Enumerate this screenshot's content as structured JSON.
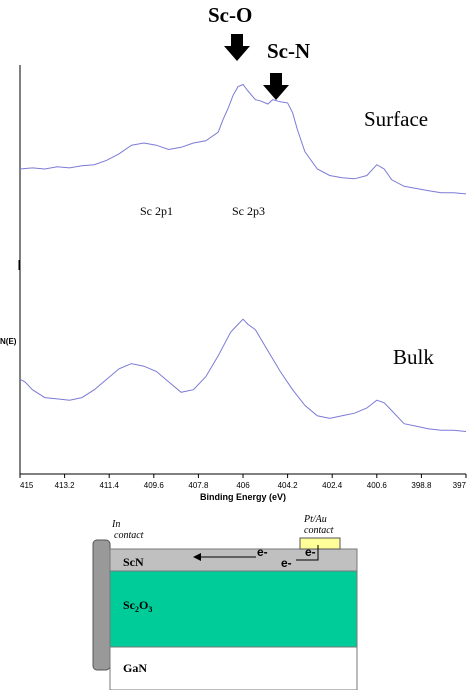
{
  "chart_data": {
    "type": "line",
    "xlabel": "Binding Energy (eV)",
    "ylabel": "N(E)",
    "x_reversed": true,
    "xlim": [
      415,
      397
    ],
    "xticks": [
      "415",
      "413.2",
      "411.4",
      "409.6",
      "407.8",
      "406",
      "404.2",
      "402.4",
      "400.6",
      "398.8",
      "397"
    ],
    "series": [
      {
        "name": "Surface",
        "x": [
          415,
          414.5,
          414,
          413.5,
          413,
          412.5,
          412,
          411.5,
          411,
          410.5,
          410,
          409.5,
          409,
          408.5,
          408,
          407.5,
          407,
          406.8,
          406.6,
          406.4,
          406.2,
          406,
          405.8,
          405.5,
          405.3,
          405,
          404.8,
          404.5,
          404.2,
          404,
          403.8,
          403.5,
          403,
          402.5,
          402,
          401.5,
          401,
          400.6,
          400.3,
          400,
          399.5,
          399,
          398.5,
          398,
          397.5,
          397
        ],
        "y": [
          4.2,
          4.25,
          4.2,
          4.3,
          4.25,
          4.35,
          4.4,
          4.6,
          4.9,
          5.3,
          5.4,
          5.3,
          5.1,
          5.2,
          5.4,
          5.5,
          5.9,
          6.5,
          7.0,
          7.6,
          8.0,
          8.1,
          7.8,
          7.4,
          7.35,
          7.2,
          7.4,
          7.3,
          7.25,
          6.8,
          6.0,
          5.0,
          4.2,
          3.9,
          3.8,
          3.75,
          3.9,
          4.4,
          4.2,
          3.7,
          3.4,
          3.3,
          3.2,
          3.1,
          3.1,
          3.05
        ],
        "label": "Surface"
      },
      {
        "name": "Bulk",
        "x": [
          415,
          414.8,
          414.5,
          414,
          413.5,
          413,
          412.5,
          412,
          411.5,
          411,
          410.5,
          410,
          409.5,
          409,
          408.5,
          408,
          407.5,
          407,
          406.5,
          406.2,
          406,
          405.8,
          405.5,
          405,
          404.5,
          404,
          403.5,
          403,
          402.5,
          402,
          401.5,
          401,
          400.6,
          400.3,
          400,
          399.5,
          399,
          398.5,
          398,
          397.5,
          397
        ],
        "y": [
          2.9,
          2.8,
          2.5,
          2.2,
          2.15,
          2.1,
          2.2,
          2.5,
          2.9,
          3.3,
          3.5,
          3.4,
          3.2,
          2.8,
          2.4,
          2.5,
          3.0,
          3.8,
          4.7,
          5.0,
          5.2,
          5.0,
          4.8,
          4.0,
          3.2,
          2.5,
          1.9,
          1.5,
          1.4,
          1.5,
          1.6,
          1.8,
          2.1,
          2.0,
          1.7,
          1.2,
          1.1,
          1.0,
          0.95,
          0.95,
          0.9
        ],
        "label": "Bulk"
      }
    ],
    "ylim": [
      0,
      9
    ],
    "annotations": {
      "sc_o": "Sc-O",
      "sc_n": "Sc-N",
      "sc_2p1": "Sc 2p1",
      "sc_2p3": "Sc 2p3"
    }
  },
  "colors": {
    "curve": "#7b7bd6",
    "sc2o3": "#00cc99",
    "scn": "#c0c0c0",
    "in_contact": "#999999",
    "pt_au": "#ffff99"
  },
  "schematic": {
    "in_contact_label_1": "In",
    "in_contact_label_2": "contact",
    "pt_au_label_1": "Pt/Au",
    "pt_au_label_2": "contact",
    "scn_label": "ScN",
    "sc2o3_base": "Sc",
    "sc2o3_sub1": "2",
    "sc2o3_mid": "O",
    "sc2o3_sub2": "3",
    "gan_label": "GaN",
    "electron_1": "e-",
    "electron_2": "e-",
    "electron_3": "e-"
  }
}
